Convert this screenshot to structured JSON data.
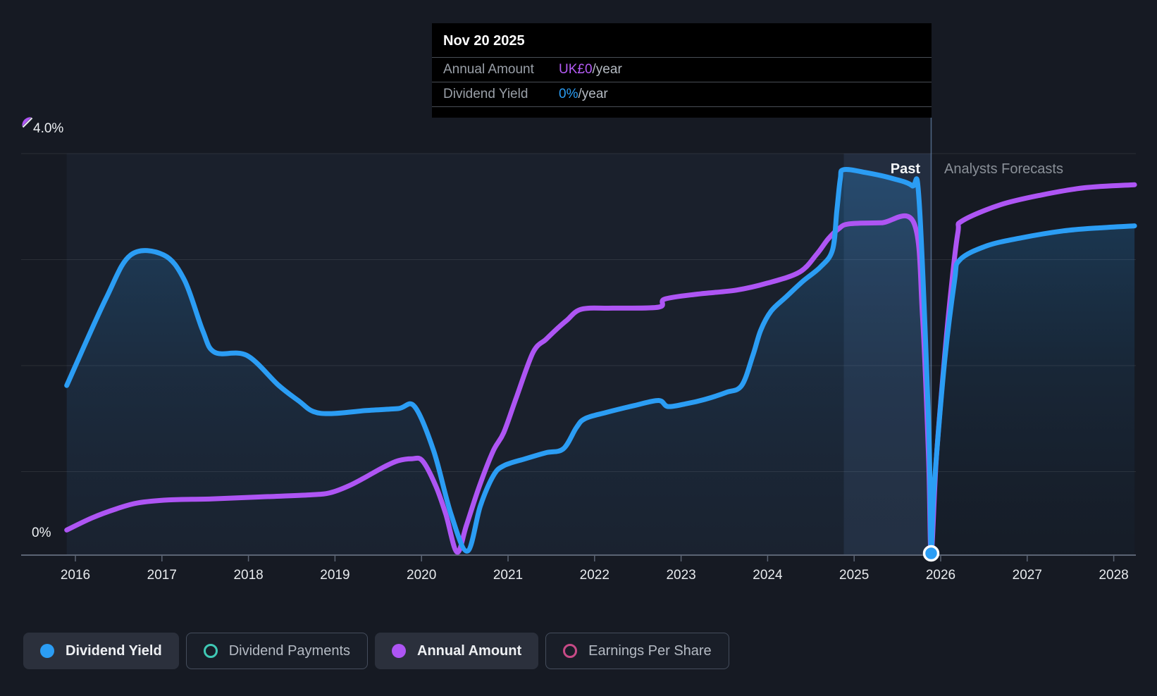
{
  "tooltip": {
    "date": "Nov 20 2025",
    "rows": [
      {
        "label": "Annual Amount",
        "value": "UK£0",
        "suffix": "/year",
        "color": "#b45bf5"
      },
      {
        "label": "Dividend Yield",
        "value": "0%",
        "suffix": "/year",
        "color": "#2b9df4"
      }
    ]
  },
  "labels": {
    "past": "Past",
    "forecast": "Analysts Forecasts"
  },
  "y_axis": {
    "top_label": "4.0%",
    "bottom_label": "0%"
  },
  "x_axis": {
    "ticks": [
      "2016",
      "2017",
      "2018",
      "2019",
      "2020",
      "2021",
      "2022",
      "2023",
      "2024",
      "2025",
      "2026",
      "2027",
      "2028"
    ]
  },
  "legend": [
    {
      "label": "Dividend Yield",
      "color": "#2b9df4",
      "marker": "filled",
      "active": true
    },
    {
      "label": "Dividend Payments",
      "color": "#3fc9b5",
      "marker": "hollow",
      "active": false
    },
    {
      "label": "Annual Amount",
      "color": "#ae55f4",
      "marker": "filled",
      "active": true
    },
    {
      "label": "Earnings Per Share",
      "color": "#c74a86",
      "marker": "hollow",
      "active": false
    }
  ],
  "colors": {
    "background": "#161a23",
    "blue": "#2b9df4",
    "purple": "#ae55f4",
    "teal": "#3fc9b5",
    "pink": "#c74a86",
    "axis": "#5b6474",
    "grid": "rgba(255,255,255,0.09)",
    "divider": "rgba(125,165,215,0.55)",
    "past_region": "rgba(120,160,215,0.05)",
    "highlight_band": "rgba(120,170,235,0.10)",
    "area_fill": "#2b9df4"
  },
  "chart_data": {
    "type": "line",
    "y_axis": {
      "min_label": "0%",
      "max_label": "4.0%",
      "min_value": 0,
      "max_value": 4.0,
      "unit": "%"
    },
    "x_range": [
      2015.9,
      2028.24
    ],
    "divider": {
      "year": 2025.89,
      "date": "Nov 20 2025",
      "label_left": "Past",
      "label_right": "Analysts Forecasts"
    },
    "highlight_band_years": [
      2024.88,
      2025.89
    ],
    "marker_point": {
      "series": "Dividend Yield",
      "year": 2025.89,
      "value": 0
    },
    "series": [
      {
        "name": "Dividend Yield",
        "color": "#2b9df4",
        "style": "line+area",
        "unit": "%",
        "points": [
          [
            2015.9,
            1.69
          ],
          [
            2016.35,
            2.55
          ],
          [
            2016.64,
            2.99
          ],
          [
            2017.02,
            2.99
          ],
          [
            2017.26,
            2.74
          ],
          [
            2017.47,
            2.24
          ],
          [
            2017.61,
            2.02
          ],
          [
            2017.98,
            1.99
          ],
          [
            2018.35,
            1.69
          ],
          [
            2018.59,
            1.53
          ],
          [
            2018.75,
            1.43
          ],
          [
            2018.96,
            1.41
          ],
          [
            2019.36,
            1.44
          ],
          [
            2019.73,
            1.46
          ],
          [
            2019.92,
            1.48
          ],
          [
            2020.14,
            1.04
          ],
          [
            2020.34,
            0.41
          ],
          [
            2020.53,
            0.04
          ],
          [
            2020.68,
            0.49
          ],
          [
            2020.83,
            0.79
          ],
          [
            2020.95,
            0.89
          ],
          [
            2021.2,
            0.96
          ],
          [
            2021.44,
            1.02
          ],
          [
            2021.64,
            1.06
          ],
          [
            2021.79,
            1.27
          ],
          [
            2021.89,
            1.36
          ],
          [
            2022.13,
            1.42
          ],
          [
            2022.46,
            1.49
          ],
          [
            2022.74,
            1.54
          ],
          [
            2022.85,
            1.48
          ],
          [
            2023.07,
            1.51
          ],
          [
            2023.27,
            1.55
          ],
          [
            2023.52,
            1.62
          ],
          [
            2023.7,
            1.69
          ],
          [
            2023.83,
            1.99
          ],
          [
            2023.92,
            2.24
          ],
          [
            2024.04,
            2.43
          ],
          [
            2024.21,
            2.57
          ],
          [
            2024.41,
            2.73
          ],
          [
            2024.61,
            2.87
          ],
          [
            2024.75,
            3.04
          ],
          [
            2024.8,
            3.43
          ],
          [
            2024.84,
            3.75
          ],
          [
            2024.88,
            3.84
          ],
          [
            2025.14,
            3.81
          ],
          [
            2025.45,
            3.75
          ],
          [
            2025.67,
            3.68
          ],
          [
            2025.75,
            3.54
          ],
          [
            2025.86,
            1.32
          ],
          [
            2025.89,
            0.01
          ],
          [
            2025.92,
            0.62
          ],
          [
            2026.04,
            1.88
          ],
          [
            2026.16,
            2.73
          ],
          [
            2026.22,
            2.94
          ],
          [
            2026.53,
            3.08
          ],
          [
            2026.93,
            3.16
          ],
          [
            2027.42,
            3.23
          ],
          [
            2027.83,
            3.26
          ],
          [
            2028.24,
            3.28
          ]
        ]
      },
      {
        "name": "Annual Amount",
        "color": "#ae55f4",
        "style": "line",
        "unit": "GBP/year",
        "points_chart_scale": [
          [
            2015.9,
            0.25
          ],
          [
            2016.19,
            0.37
          ],
          [
            2016.47,
            0.46
          ],
          [
            2016.72,
            0.52
          ],
          [
            2017.08,
            0.55
          ],
          [
            2017.57,
            0.56
          ],
          [
            2018.14,
            0.58
          ],
          [
            2018.71,
            0.6
          ],
          [
            2018.94,
            0.62
          ],
          [
            2019.16,
            0.69
          ],
          [
            2019.36,
            0.78
          ],
          [
            2019.57,
            0.88
          ],
          [
            2019.73,
            0.94
          ],
          [
            2019.89,
            0.96
          ],
          [
            2020.01,
            0.94
          ],
          [
            2020.16,
            0.7
          ],
          [
            2020.28,
            0.41
          ],
          [
            2020.41,
            0.03
          ],
          [
            2020.52,
            0.3
          ],
          [
            2020.67,
            0.69
          ],
          [
            2020.83,
            1.04
          ],
          [
            2020.95,
            1.22
          ],
          [
            2021.1,
            1.58
          ],
          [
            2021.29,
            2.02
          ],
          [
            2021.44,
            2.15
          ],
          [
            2021.56,
            2.25
          ],
          [
            2021.68,
            2.34
          ],
          [
            2021.85,
            2.45
          ],
          [
            2022.21,
            2.46
          ],
          [
            2022.74,
            2.47
          ],
          [
            2022.81,
            2.55
          ],
          [
            2023.19,
            2.6
          ],
          [
            2023.64,
            2.64
          ],
          [
            2024.0,
            2.71
          ],
          [
            2024.37,
            2.82
          ],
          [
            2024.57,
            3.0
          ],
          [
            2024.7,
            3.15
          ],
          [
            2024.82,
            3.25
          ],
          [
            2024.94,
            3.3
          ],
          [
            2025.31,
            3.31
          ],
          [
            2025.69,
            3.31
          ],
          [
            2025.79,
            2.38
          ],
          [
            2025.86,
            0.97
          ],
          [
            2025.89,
            0.01
          ],
          [
            2025.95,
            0.97
          ],
          [
            2026.05,
            2.02
          ],
          [
            2026.13,
            2.73
          ],
          [
            2026.2,
            3.22
          ],
          [
            2026.25,
            3.33
          ],
          [
            2026.69,
            3.49
          ],
          [
            2027.18,
            3.59
          ],
          [
            2027.67,
            3.66
          ],
          [
            2028.24,
            3.69
          ]
        ]
      },
      {
        "name": "Dividend Payments",
        "color": "#3fc9b5",
        "style": "hidden",
        "points": []
      },
      {
        "name": "Earnings Per Share",
        "color": "#c74a86",
        "style": "hidden",
        "points": []
      }
    ],
    "x_tick_years": [
      2016,
      2017,
      2018,
      2019,
      2020,
      2021,
      2022,
      2023,
      2024,
      2025,
      2026,
      2027,
      2028
    ]
  }
}
